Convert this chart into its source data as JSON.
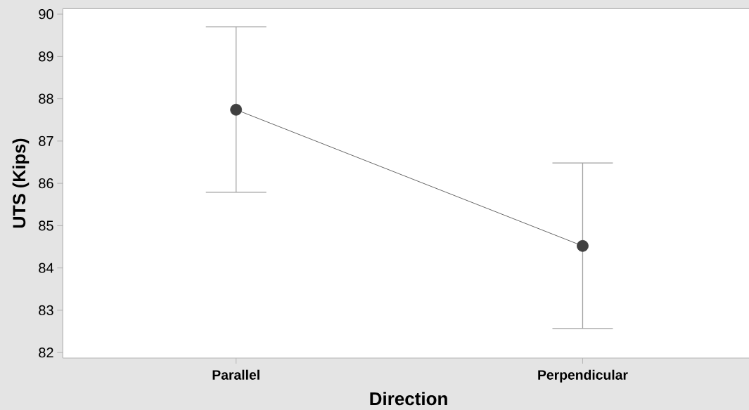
{
  "chart_data": {
    "type": "line",
    "xlabel": "Direction",
    "ylabel": "UTS (Kips)",
    "categories": [
      "Parallel",
      "Perpendicular"
    ],
    "values": [
      87.74,
      84.52
    ],
    "errors": [
      [
        85.79,
        89.7
      ],
      [
        82.57,
        86.48
      ]
    ],
    "color": "#404040",
    "marker": "circle",
    "ylim": [
      81.87,
      90.13
    ],
    "yticks": [
      82,
      83,
      84,
      85,
      86,
      87,
      88,
      89,
      90
    ]
  }
}
